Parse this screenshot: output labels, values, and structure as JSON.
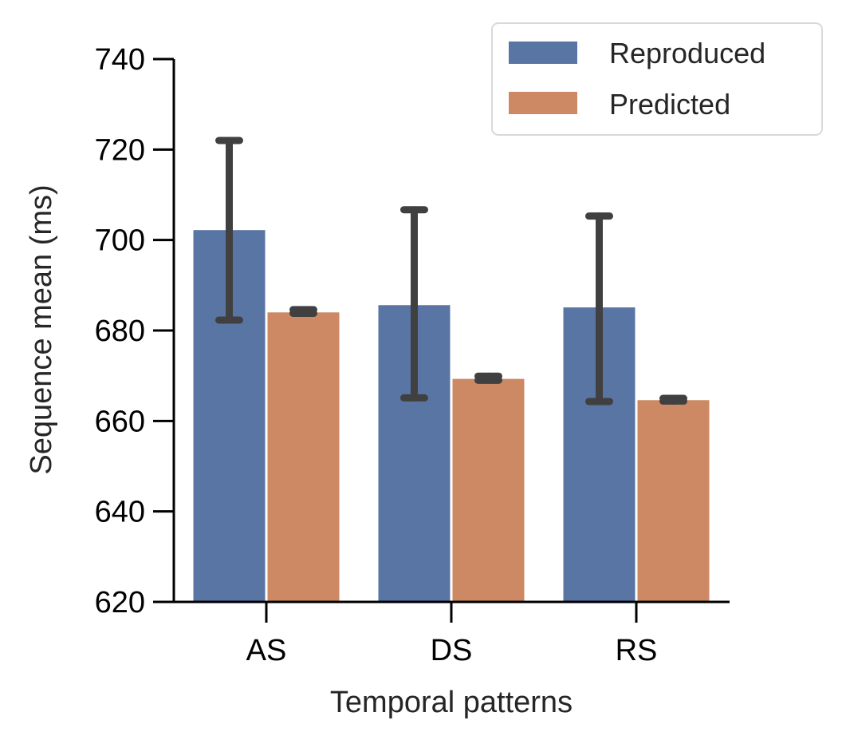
{
  "chart_data": {
    "type": "bar",
    "title": "",
    "xlabel": "Temporal patterns",
    "ylabel": "Sequence mean (ms)",
    "categories": [
      "AS",
      "DS",
      "RS"
    ],
    "ylim": [
      620,
      740
    ],
    "yticks": [
      620,
      640,
      660,
      680,
      700,
      720,
      740
    ],
    "grid": false,
    "legend_position": "top-right",
    "series": [
      {
        "name": "Reproduced",
        "color": "#5975a4",
        "values": [
          702.2,
          685.6,
          685.1
        ],
        "err_low": [
          682.3,
          665.1,
          664.3
        ],
        "err_high": [
          722.0,
          706.7,
          705.3
        ]
      },
      {
        "name": "Predicted",
        "color": "#cc8963",
        "values": [
          684.0,
          669.3,
          664.6
        ],
        "err_low": [
          683.8,
          669.0,
          664.4
        ],
        "err_high": [
          684.6,
          669.9,
          665.0
        ]
      }
    ],
    "errorbar_color": "#404040"
  }
}
